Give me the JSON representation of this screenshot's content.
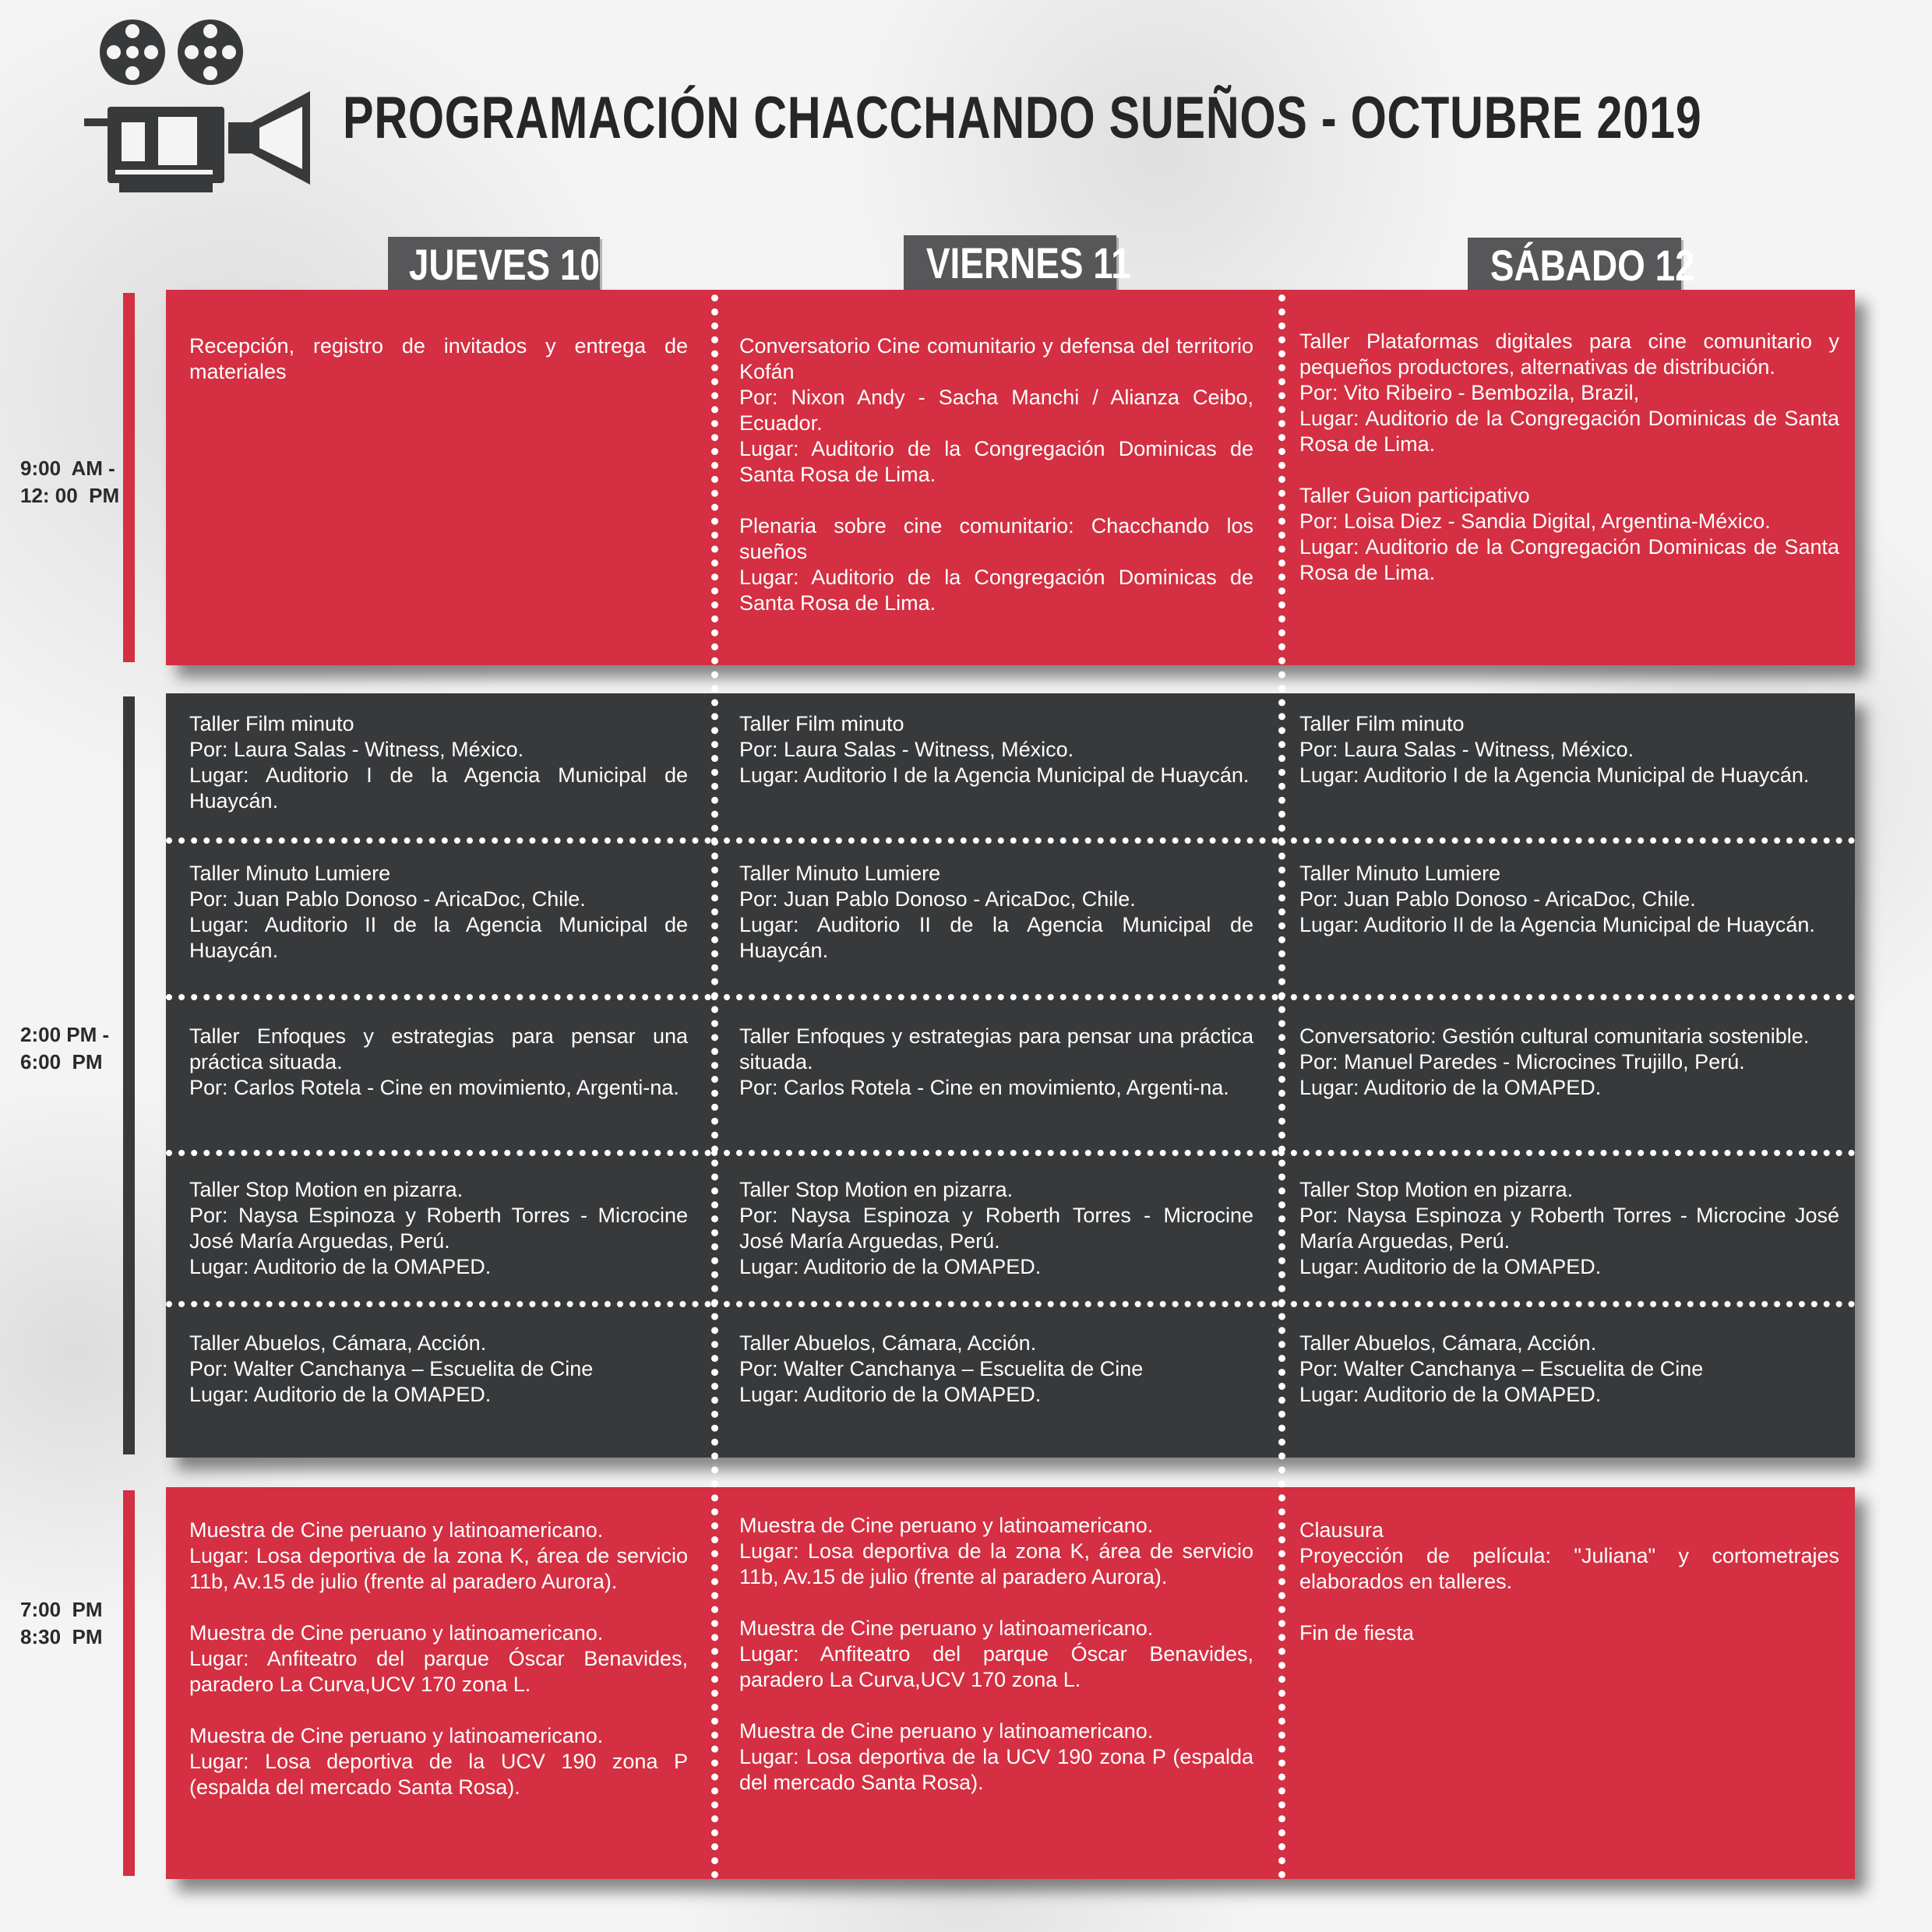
{
  "title": "PROGRAMACIÓN  CHACCHANDO  SUEÑOS - OCTUBRE 2019",
  "icon": "film-projector-icon",
  "colors": {
    "red": "#d42f42",
    "dark": "#37393b",
    "header": "#575759"
  },
  "days": [
    "JUEVES 10",
    "VIERNES 11",
    "SÁBADO 12"
  ],
  "times": [
    "9:00  AM -\n12: 00  PM",
    "2:00 PM -\n6:00  PM",
    "7:00  PM\n8:30  PM"
  ],
  "morning": [
    [
      [
        "Recepción, registro de invitados y entrega de materiales"
      ]
    ],
    [
      [
        "Conversatorio Cine comunitario y defensa del territorio Kofán",
        "Por: Nixon Andy - Sacha Manchi / Alianza Ceibo, Ecuador.",
        "Lugar: Auditorio de la Congregación Dominicas de Santa Rosa de Lima."
      ],
      [
        "Plenaria sobre cine comunitario:  Chacchando los sueños",
        "Lugar: Auditorio de la Congregación Dominicas de Santa Rosa de Lima."
      ]
    ],
    [
      [
        "Taller Plataformas digitales para cine comunitario y pequeños productores, alternativas de distribución.",
        "Por: Vito Ribeiro - Bembozila, Brazil,",
        "Lugar: Auditorio de la Congregación Dominicas de Santa Rosa de Lima."
      ],
      [
        "Taller Guion participativo",
        "Por: Loisa Diez - Sandia Digital, Argentina-México.",
        "Lugar: Auditorio de la Congregación Dominicas de Santa Rosa de Lima."
      ]
    ]
  ],
  "afternoon": [
    [
      [
        "Taller Film minuto",
        "Por: Laura Salas - Witness, México.",
        "Lugar: Auditorio I de la Agencia Municipal de Huaycán."
      ],
      [
        "Taller Film minuto",
        "Por: Laura Salas - Witness, México.",
        "Lugar: Auditorio I de la Agencia Municipal de Huaycán."
      ],
      [
        "Taller Film minuto",
        "Por: Laura Salas - Witness, México.",
        "Lugar: Auditorio I de la Agencia Municipal de Huaycán."
      ]
    ],
    [
      [
        "Taller Minuto Lumiere",
        "Por: Juan Pablo Donoso - AricaDoc, Chile.",
        "Lugar: Auditorio II de la Agencia Municipal de Huaycán."
      ],
      [
        "Taller Minuto Lumiere",
        "Por: Juan Pablo Donoso - AricaDoc, Chile.",
        "Lugar: Auditorio II de la Agencia Municipal de Huaycán."
      ],
      [
        "Taller Minuto Lumiere",
        "Por: Juan Pablo Donoso - AricaDoc, Chile.",
        "Lugar: Auditorio II de la Agencia Municipal de Huaycán."
      ]
    ],
    [
      [
        "Taller Enfoques y estrategias para pensar una práctica situada.",
        "Por: Carlos Rotela - Cine en  movimiento, Argenti-na."
      ],
      [
        "Taller Enfoques y estrategias para pensar una práctica situada.",
        "Por: Carlos Rotela - Cine en movimiento, Argenti-na."
      ],
      [
        "Conversatorio: Gestión cultural comunitaria sostenible.",
        "Por: Manuel Paredes - Microcines Trujillo, Perú.",
        "Lugar: Auditorio de la OMAPED."
      ]
    ],
    [
      [
        "Taller Stop Motion en pizarra.",
        "Por: Naysa Espinoza y Roberth Torres - Microcine José María Arguedas, Perú.",
        "Lugar: Auditorio de la OMAPED."
      ],
      [
        "Taller Stop Motion en pizarra.",
        "Por: Naysa Espinoza y Roberth Torres - Microcine José María Arguedas, Perú.",
        "Lugar: Auditorio de la OMAPED."
      ],
      [
        "Taller Stop Motion en pizarra.",
        "Por: Naysa Espinoza y Roberth Torres - Microcine José María Arguedas, Perú.",
        "Lugar: Auditorio de la OMAPED."
      ]
    ],
    [
      [
        "Taller  Abuelos, Cámara, Acción.",
        "Por: Walter Canchanya – Escuelita de Cine",
        "Lugar: Auditorio de la OMAPED."
      ],
      [
        "Taller  Abuelos, Cámara, Acción.",
        "Por: Walter Canchanya – Escuelita de Cine",
        "Lugar: Auditorio de la OMAPED."
      ],
      [
        "Taller  Abuelos, Cámara, Acción.",
        "Por: Walter Canchanya – Escuelita de Cine",
        "Lugar: Auditorio de la OMAPED."
      ]
    ]
  ],
  "evening": [
    [
      [
        "Muestra de Cine peruano y latinoamericano.",
        "Lugar: Losa deportiva de la zona K, área de servicio 11b, Av.15 de julio (frente al paradero Aurora)."
      ],
      [
        "Muestra de Cine peruano y latinoamericano.",
        "Lugar: Anfiteatro del parque Óscar Benavides, paradero La Curva,UCV 170 zona L."
      ],
      [
        "Muestra de Cine peruano y latinoamericano.",
        "Lugar: Losa deportiva de la UCV 190 zona P (espalda del mercado Santa Rosa)."
      ]
    ],
    [
      [
        "Muestra de Cine peruano y latinoamericano.",
        "Lugar: Losa deportiva de la zona K, área de servicio 11b, Av.15 de julio (frente al paradero Aurora)."
      ],
      [
        "Muestra de Cine peruano y latinoamericano.",
        "Lugar: Anfiteatro del parque Óscar Benavides, paradero La Curva,UCV 170 zona L."
      ],
      [
        "Muestra de Cine peruano y latinoamericano.",
        "Lugar: Losa deportiva de la UCV 190 zona P (espalda del mercado Santa Rosa)."
      ]
    ],
    [
      [
        "Clausura",
        "Proyección de película: \"Juliana\" y cortometrajes elaborados en talleres."
      ],
      [
        "Fin de fiesta"
      ]
    ]
  ]
}
